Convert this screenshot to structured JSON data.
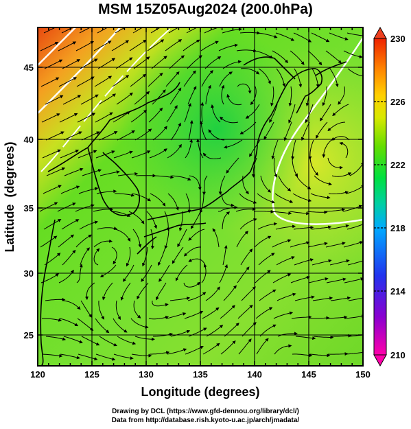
{
  "title": "MSM 15Z05Aug2024 (200.0hPa)",
  "map": {
    "xlabel": "Longitude (degrees)",
    "ylabel": "Latitude  (degrees)",
    "lon_range": [
      120,
      150
    ],
    "lat_range": [
      22.5,
      47.5
    ],
    "lon_ticks": [
      "120",
      "125",
      "130",
      "135",
      "140",
      "145",
      "150"
    ],
    "lat_ticks": [
      "25",
      "30",
      "35",
      "40",
      "45"
    ],
    "field": "temperature-like shading with streamlines"
  },
  "colorbar": {
    "ticks": [
      "230",
      "226",
      "222",
      "218",
      "214",
      "210"
    ],
    "range": [
      210,
      230
    ],
    "colors": [
      "#ff00aa",
      "#2233ee",
      "#00c0ff",
      "#00e040",
      "#66dd00",
      "#e8e800",
      "#ff8800",
      "#ee2200"
    ]
  },
  "credits": {
    "line1": "Drawing by DCL (https://www.gfd-dennou.org/library/dcl/)",
    "line2": "Data from http://database.rish.kyoto-u.ac.jp/arch/jmadata/"
  }
}
